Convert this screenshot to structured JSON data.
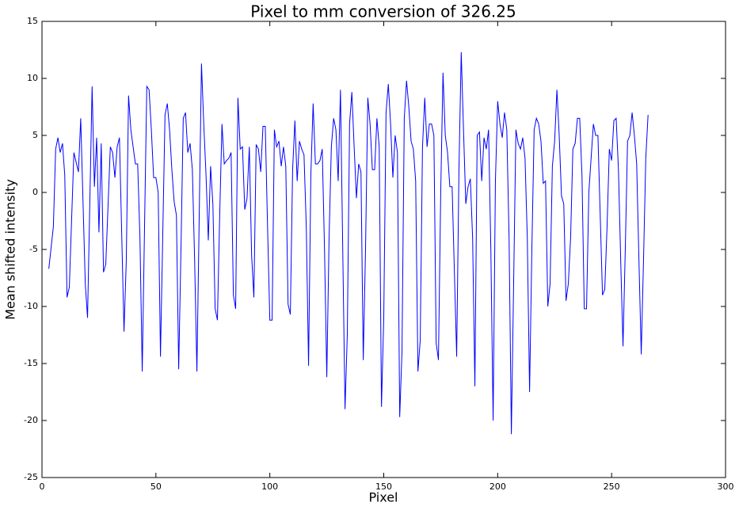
{
  "chart_data": {
    "type": "line",
    "title": "Pixel to mm conversion of 326.25",
    "xlabel": "Pixel",
    "ylabel": "Mean shifted intensity",
    "xlim": [
      0,
      300
    ],
    "ylim": [
      -25,
      15
    ],
    "xticks": [
      0,
      50,
      100,
      150,
      200,
      250,
      300
    ],
    "yticks": [
      -25,
      -20,
      -15,
      -10,
      -5,
      0,
      5,
      10,
      15
    ],
    "series": [
      {
        "color": "#0000ff",
        "x": [
          3,
          5,
          6,
          7,
          8,
          9,
          10,
          11,
          12,
          14,
          16,
          17,
          19,
          20,
          22,
          23,
          24,
          25,
          26,
          27,
          28,
          30,
          31,
          32,
          33,
          34,
          36,
          37,
          38,
          39,
          40,
          41,
          42,
          43,
          44,
          46,
          47,
          48,
          49,
          50,
          51,
          52,
          54,
          55,
          56,
          57,
          58,
          59,
          60,
          61,
          62,
          63,
          64,
          65,
          66,
          67,
          68,
          70,
          71,
          72,
          73,
          74,
          75,
          76,
          77,
          78,
          79,
          80,
          81,
          82,
          83,
          84,
          85,
          86,
          87,
          88,
          89,
          90,
          91,
          92,
          93,
          94,
          95,
          96,
          97,
          98,
          99,
          100,
          101,
          102,
          103,
          104,
          105,
          106,
          107,
          108,
          109,
          110,
          111,
          112,
          113,
          114,
          115,
          116,
          117,
          118,
          119,
          120,
          121,
          122,
          123,
          124,
          125,
          126,
          127,
          128,
          129,
          130,
          131,
          132,
          133,
          134,
          135,
          136,
          137,
          138,
          139,
          140,
          141,
          142,
          143,
          144,
          145,
          146,
          147,
          148,
          149,
          150,
          151,
          152,
          153,
          154,
          155,
          156,
          157,
          158,
          159,
          160,
          161,
          162,
          163,
          164,
          165,
          166,
          167,
          168,
          169,
          170,
          171,
          172,
          173,
          174,
          175,
          176,
          177,
          178,
          179,
          180,
          181,
          182,
          183,
          184,
          185,
          186,
          187,
          188,
          189,
          190,
          191,
          192,
          193,
          194,
          195,
          196,
          197,
          198,
          199,
          200,
          201,
          202,
          203,
          204,
          205,
          206,
          207,
          208,
          209,
          210,
          211,
          212,
          213,
          214,
          215,
          216,
          217,
          218,
          219,
          220,
          221,
          222,
          223,
          224,
          225,
          226,
          227,
          228,
          229,
          230,
          231,
          232,
          233,
          234,
          235,
          236,
          237,
          238,
          239,
          240,
          241,
          242,
          243,
          244,
          245,
          246,
          247,
          248,
          249,
          250,
          251,
          252,
          253,
          254,
          255,
          256,
          257,
          258,
          259,
          260,
          261,
          262,
          263,
          264,
          265,
          266
        ],
        "values": [
          -6.7,
          -3,
          3.8,
          4.8,
          3.5,
          4.3,
          1.5,
          -9.2,
          -8.3,
          3.5,
          1.8,
          6.5,
          -8,
          -11,
          9.3,
          0.5,
          4.8,
          -3.5,
          4.3,
          -7,
          -6.3,
          4,
          3.5,
          1.3,
          4,
          4.8,
          -12.2,
          -6,
          8.5,
          5.5,
          4,
          2.5,
          2.5,
          -4,
          -15.7,
          9.3,
          9,
          5.5,
          1.3,
          1.3,
          0,
          -14.4,
          6.8,
          7.8,
          5.5,
          2,
          -0.8,
          -2,
          -15.5,
          -5,
          6.5,
          7,
          3.5,
          4.3,
          2,
          -6,
          -15.7,
          11.3,
          6,
          1.5,
          -4.2,
          2.3,
          -1,
          -10.2,
          -11.2,
          -2,
          6,
          2.5,
          2.8,
          3,
          3.5,
          -9,
          -10.2,
          8.3,
          3.8,
          4,
          -1.5,
          -0.5,
          4,
          -5.5,
          -9.2,
          4.2,
          3.8,
          1.8,
          5.8,
          5.8,
          -3,
          -11.2,
          -11.2,
          5.5,
          4,
          4.5,
          2.3,
          4,
          2.3,
          -9.8,
          -10.7,
          2,
          6.3,
          1,
          4.5,
          3.8,
          3.3,
          -3,
          -15.2,
          1.5,
          7.8,
          2.5,
          2.5,
          2.8,
          3.8,
          -5,
          -16.2,
          -4,
          4,
          6.5,
          5.5,
          1,
          9,
          -5,
          -19,
          -12.5,
          6,
          8.8,
          4,
          -0.5,
          2.5,
          1.8,
          -14.7,
          -5,
          8.3,
          6,
          2,
          2,
          6.5,
          4,
          -18.8,
          -11,
          7,
          9.5,
          6,
          1.3,
          5,
          3.5,
          -19.7,
          -14,
          6.5,
          9.8,
          7.5,
          4.5,
          3.8,
          1,
          -15.7,
          -13,
          4,
          8.3,
          4,
          6,
          6,
          5,
          -13.2,
          -14.7,
          0,
          10.5,
          5,
          3.5,
          0.5,
          0.5,
          -7,
          -14.4,
          2,
          12.3,
          5.5,
          -1,
          0.5,
          1.2,
          -4,
          -17,
          5,
          5.3,
          1,
          4.8,
          3.8,
          5.5,
          -5,
          -20,
          1,
          8,
          6,
          4.8,
          7,
          5.5,
          -4,
          -21.2,
          -8,
          5.5,
          4.3,
          3.8,
          4.8,
          3,
          -4,
          -17.5,
          -5,
          5.5,
          6.5,
          6,
          4.5,
          0.8,
          1,
          -10,
          -8,
          2.3,
          4.5,
          9,
          5,
          -0.3,
          -1,
          -9.5,
          -8,
          -4,
          3.8,
          4.3,
          6.5,
          6.5,
          1.5,
          -10.2,
          -10.2,
          0,
          3,
          6,
          5,
          5,
          -2,
          -9,
          -8.5,
          -3,
          3.8,
          2.8,
          6.3,
          6.5,
          2,
          -6,
          -13.5,
          -5,
          4.5,
          5,
          7,
          5,
          2.5,
          -6,
          -14.2,
          -6,
          3,
          6.8
        ]
      }
    ]
  }
}
